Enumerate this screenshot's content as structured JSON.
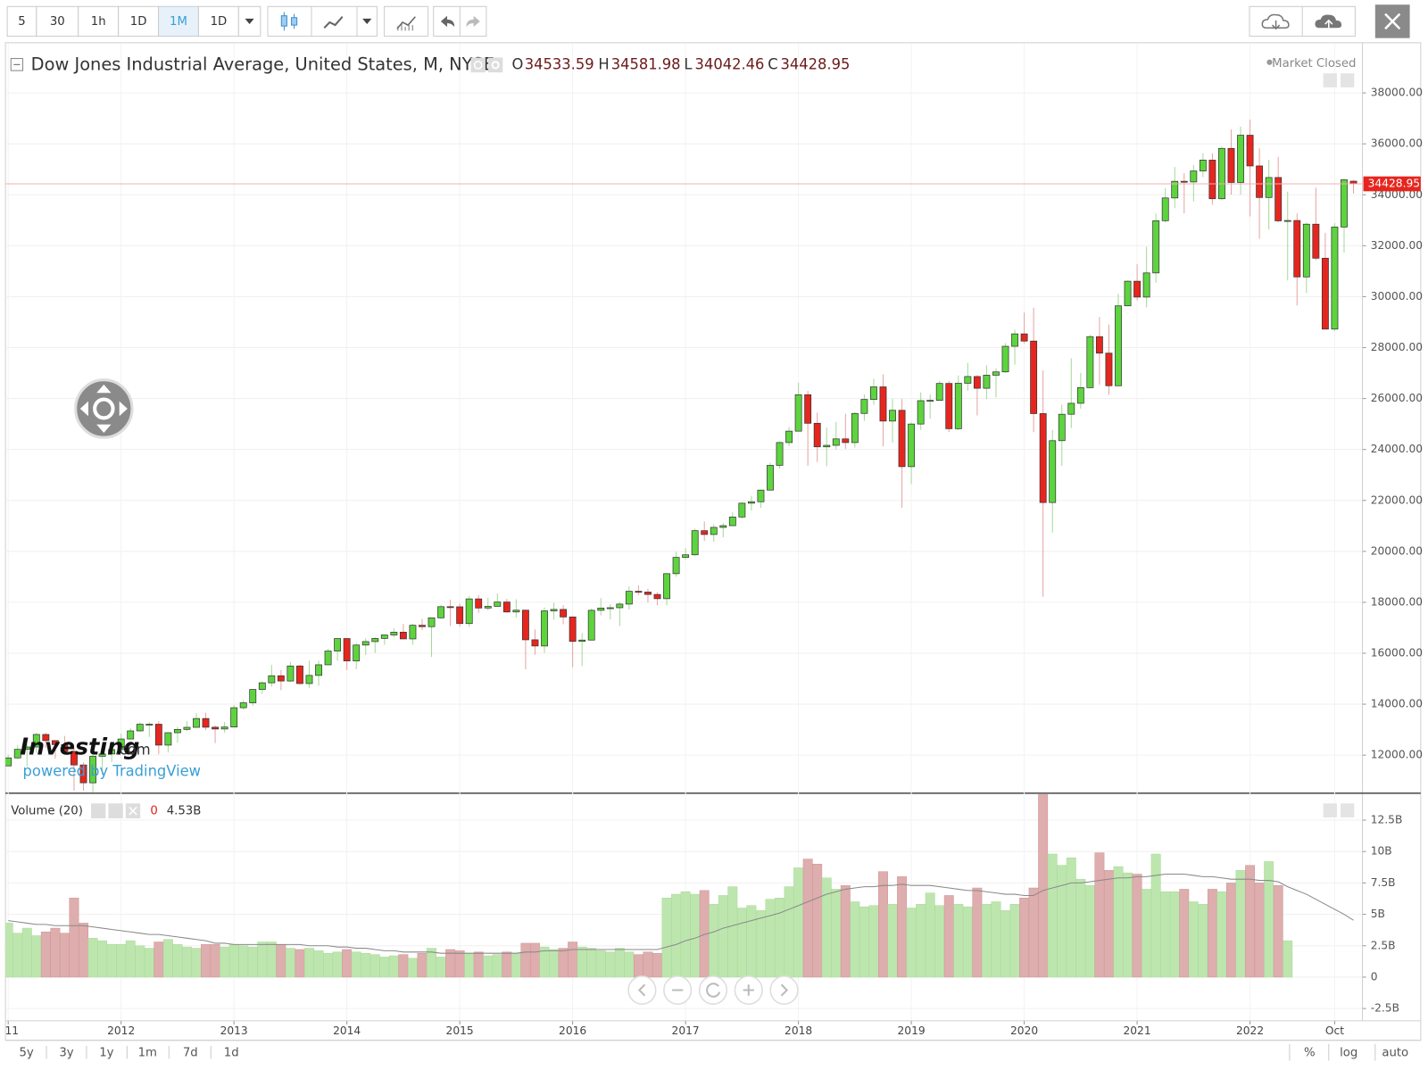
{
  "toolbar": {
    "intervals": [
      "5",
      "30",
      "1h",
      "1D",
      "1M",
      "1D"
    ],
    "active": 4
  },
  "ranges": [
    "5y",
    "3y",
    "1y",
    "1m",
    "7d",
    "1d"
  ],
  "scale_options": [
    "%",
    "log",
    "auto"
  ],
  "market_status": "Market Closed",
  "watermark": {
    "brand": "Investing",
    "suffix": ".com",
    "powered": "powered by TradingView"
  },
  "chart_data": [
    {
      "type": "candlestick",
      "title": "Dow Jones Industrial Average, United States, M, NYSE",
      "ohlc_labels": [
        "O",
        "H",
        "L",
        "C"
      ],
      "up_color": "#5dd43e",
      "down_color": "#e6261e",
      "grid": true,
      "categories": [
        "11",
        null,
        null,
        null,
        null,
        null,
        null,
        null,
        null,
        null,
        null,
        null,
        "2012",
        null,
        null,
        null,
        null,
        null,
        null,
        null,
        null,
        null,
        null,
        null,
        "2013",
        null,
        null,
        null,
        null,
        null,
        null,
        null,
        null,
        null,
        null,
        null,
        "2014",
        null,
        null,
        null,
        null,
        null,
        null,
        null,
        null,
        null,
        null,
        null,
        "2015",
        null,
        null,
        null,
        null,
        null,
        null,
        null,
        null,
        null,
        null,
        null,
        "2016",
        null,
        null,
        null,
        null,
        null,
        null,
        null,
        null,
        null,
        null,
        null,
        "2017",
        null,
        null,
        null,
        null,
        null,
        null,
        null,
        null,
        null,
        null,
        null,
        "2018",
        null,
        null,
        null,
        null,
        null,
        null,
        null,
        null,
        null,
        null,
        null,
        "2019",
        null,
        null,
        null,
        null,
        null,
        null,
        null,
        null,
        null,
        null,
        null,
        "2020",
        null,
        null,
        null,
        null,
        null,
        null,
        null,
        null,
        null,
        null,
        null,
        "2021",
        null,
        null,
        null,
        null,
        null,
        null,
        null,
        null,
        null,
        null,
        null,
        "2022",
        null,
        null,
        null,
        null,
        null,
        null,
        null,
        null,
        "Oct",
        null,
        null
      ],
      "open": [
        11578,
        11892,
        12226,
        12320,
        12811,
        12570,
        12414,
        12143,
        11614,
        10913,
        11955,
        12046,
        12218,
        12633,
        12952,
        13212,
        13214,
        12393,
        12880,
        13009,
        13091,
        13437,
        13096,
        13026,
        13104,
        13861,
        14054,
        14579,
        14840,
        15116,
        14910,
        15500,
        14810,
        15130,
        15546,
        16086,
        16577,
        15699,
        16322,
        16458,
        16581,
        16717,
        16827,
        16563,
        17098,
        17043,
        17391,
        17828,
        17823,
        17165,
        18133,
        17776,
        17841,
        18011,
        17620,
        17690,
        16528,
        16285,
        17664,
        17720,
        17425,
        16466,
        16517,
        17685,
        17774,
        17787,
        17930,
        18432,
        18401,
        18308,
        18142,
        19124,
        19763,
        19864,
        20812,
        20663,
        20941,
        21009,
        21350,
        21891,
        21948,
        22405,
        23377,
        24272,
        24719,
        26149,
        25029,
        24103,
        24163,
        24416,
        24271,
        25415,
        25965,
        26458,
        25116,
        25538,
        23327,
        24999,
        25916,
        25929,
        26593,
        24815,
        26600,
        26864,
        26403,
        26917,
        27046,
        28051,
        28538,
        28256,
        25409,
        21917,
        24346,
        25383,
        25813,
        26428,
        28430,
        27782,
        26502,
        29639,
        30606,
        29983,
        30932,
        32982,
        33875,
        34529,
        34503,
        34935,
        35361,
        33844,
        35820,
        34484,
        36338,
        35132,
        33893,
        34678,
        32977,
        32990,
        30775,
        32845,
        31510,
        28726,
        32733,
        34533.59
      ],
      "high": [
        12020,
        12392,
        12419,
        12876,
        12877,
        12580,
        12754,
        12284,
        11717,
        12284,
        12188,
        12330,
        12842,
        13056,
        13290,
        13297,
        13339,
        12899,
        13103,
        13331,
        13653,
        13662,
        13161,
        13302,
        13970,
        14150,
        14585,
        14888,
        15542,
        15340,
        15658,
        15542,
        15710,
        15710,
        16174,
        16588,
        16588,
        16398,
        16589,
        16632,
        16736,
        16978,
        17151,
        17153,
        17350,
        17395,
        17895,
        18103,
        17951,
        18244,
        18288,
        18175,
        18351,
        18137,
        18120,
        17708,
        16933,
        17799,
        17978,
        17888,
        17425,
        16795,
        17756,
        18168,
        17923,
        18017,
        18622,
        18668,
        18534,
        18400,
        19152,
        19987,
        20125,
        20892,
        21170,
        21070,
        21112,
        21535,
        21930,
        22180,
        22420,
        23485,
        24327,
        24876,
        26617,
        26307,
        25450,
        24858,
        25087,
        25402,
        25468,
        26168,
        26770,
        26952,
        25980,
        25980,
        25066,
        26242,
        26156,
        26696,
        26689,
        26907,
        27399,
        26918,
        27306,
        27180,
        28175,
        28702,
        29374,
        29569,
        27102,
        24765,
        25759,
        27581,
        27007,
        28502,
        29199,
        28903,
        30117,
        30637,
        31272,
        31962,
        33259,
        34256,
        35091,
        34849,
        35171,
        35631,
        35631,
        35892,
        36566,
        36679,
        36952,
        35824,
        35372,
        35492,
        34118,
        33272,
        32910,
        34281,
        32504,
        32884,
        34595,
        34581.98
      ],
      "low": [
        11577,
        11849,
        11555,
        12093,
        12282,
        11862,
        12094,
        10604,
        10597,
        10404,
        11231,
        11735,
        12218,
        12621,
        12920,
        12710,
        12035,
        12101,
        12492,
        12939,
        13089,
        12980,
        12471,
        12884,
        13104,
        13784,
        13937,
        14398,
        14688,
        14551,
        14880,
        14760,
        14640,
        14719,
        15545,
        15703,
        15340,
        15373,
        15937,
        16015,
        16334,
        16621,
        16563,
        16333,
        16911,
        15855,
        17340,
        17067,
        17037,
        17037,
        17585,
        17680,
        17852,
        17590,
        17399,
        15370,
        15942,
        16013,
        17317,
        17139,
        15450,
        15503,
        16545,
        17484,
        17331,
        17063,
        17714,
        18287,
        17992,
        17888,
        17884,
        19007,
        19678,
        19831,
        20412,
        20379,
        20554,
        20994,
        21279,
        21600,
        21709,
        22417,
        23242,
        24135,
        24719,
        23361,
        23509,
        23344,
        23997,
        24022,
        24077,
        25124,
        25759,
        24123,
        24269,
        21713,
        22639,
        24772,
        25208,
        25915,
        24680,
        24764,
        26305,
        25339,
        25978,
        26045,
        27010,
        27325,
        28170,
        24681,
        18214,
        20735,
        23361,
        24843,
        25604,
        26410,
        26538,
        26144,
        26501,
        29652,
        29857,
        29580,
        30547,
        32912,
        33474,
        33272,
        33742,
        34690,
        33613,
        33785,
        34005,
        34006,
        33150,
        32272,
        32632,
        32913,
        30635,
        29653,
        30144,
        31430,
        28715,
        28660,
        31727,
        34042.46
      ],
      "close": [
        11892,
        12226,
        12320,
        12811,
        12570,
        12414,
        12143,
        11614,
        10913,
        11955,
        12046,
        12218,
        12633,
        12952,
        13212,
        13214,
        12393,
        12880,
        13009,
        13091,
        13437,
        13096,
        13026,
        13104,
        13861,
        14054,
        14579,
        14840,
        15116,
        14910,
        15500,
        14810,
        15130,
        15546,
        16086,
        16577,
        15699,
        16322,
        16458,
        16581,
        16717,
        16827,
        16563,
        17098,
        17043,
        17391,
        17828,
        17823,
        17165,
        18133,
        17776,
        17841,
        18011,
        17620,
        17690,
        16528,
        16285,
        17664,
        17720,
        17425,
        16466,
        16517,
        17685,
        17774,
        17787,
        17930,
        18432,
        18401,
        18308,
        18142,
        19124,
        19763,
        19864,
        20812,
        20663,
        20941,
        21009,
        21350,
        21891,
        21948,
        22405,
        23377,
        24272,
        24719,
        26149,
        25029,
        24103,
        24163,
        24416,
        24271,
        25415,
        25965,
        26458,
        25116,
        25538,
        23327,
        24999,
        25916,
        25929,
        26593,
        24815,
        26600,
        26864,
        26403,
        26917,
        27046,
        28051,
        28538,
        28256,
        25409,
        21917,
        24346,
        25383,
        25813,
        26428,
        28430,
        27782,
        26502,
        29639,
        30606,
        29983,
        30932,
        32982,
        33875,
        34529,
        34503,
        34935,
        35361,
        33844,
        35820,
        34484,
        36338,
        35132,
        33893,
        34678,
        32977,
        32990,
        30775,
        32845,
        31510,
        28726,
        32733,
        34590,
        34428.95
      ],
      "ylim": [
        10541,
        39933
      ],
      "yticks": [
        {
          "value": 12000,
          "label": "12000.00"
        },
        {
          "value": 14000,
          "label": "14000.00"
        },
        {
          "value": 16000,
          "label": "16000.00"
        },
        {
          "value": 18000,
          "label": "18000.00"
        },
        {
          "value": 20000,
          "label": "20000.00"
        },
        {
          "value": 22000,
          "label": "22000.00"
        },
        {
          "value": 24000,
          "label": "24000.00"
        },
        {
          "value": 26000,
          "label": "26000.00"
        },
        {
          "value": 28000,
          "label": "28000.00"
        },
        {
          "value": 30000,
          "label": "30000.00"
        },
        {
          "value": 32000,
          "label": "32000.00"
        },
        {
          "value": 34000,
          "label": "34000.00"
        },
        {
          "value": 36000,
          "label": "36000.00"
        },
        {
          "value": 38000,
          "label": "38000.00"
        }
      ]
    },
    {
      "type": "bar",
      "title": "Volume (20)",
      "up_color": "#bde6ae",
      "down_color": "#deadad",
      "ma_color": "#8a8a8a",
      "ma_label": "4.53B",
      "values": [
        4.3,
        3.5,
        3.9,
        3.3,
        3.6,
        3.9,
        3.5,
        6.3,
        4.3,
        3.1,
        2.9,
        2.6,
        2.6,
        2.9,
        2.5,
        2.3,
        2.8,
        3.0,
        2.6,
        2.4,
        2.3,
        2.6,
        2.6,
        2.4,
        2.6,
        2.5,
        2.4,
        2.8,
        2.8,
        2.6,
        2.3,
        2.2,
        2.3,
        2.1,
        1.9,
        2.0,
        2.2,
        2.0,
        1.9,
        1.8,
        1.6,
        1.7,
        1.8,
        1.5,
        1.9,
        2.3,
        1.6,
        2.2,
        2.1,
        1.9,
        2.0,
        1.7,
        1.8,
        2.0,
        1.9,
        2.7,
        2.7,
        2.4,
        2.2,
        2.3,
        2.8,
        2.4,
        2.3,
        2.1,
        2.0,
        2.3,
        2.0,
        1.8,
        2.0,
        1.9,
        6.3,
        6.6,
        6.8,
        6.6,
        6.9,
        5.8,
        6.5,
        7.2,
        5.5,
        5.7,
        5.3,
        6.2,
        6.3,
        7.2,
        8.7,
        9.4,
        9.0,
        7.9,
        7.0,
        7.3,
        6.0,
        5.6,
        5.7,
        8.4,
        5.8,
        8.0,
        5.5,
        5.8,
        6.7,
        5.7,
        6.5,
        5.8,
        5.6,
        7.1,
        5.8,
        6.0,
        5.3,
        5.8,
        6.3,
        7.1,
        15.2,
        9.8,
        8.9,
        9.5,
        7.8,
        7.3,
        9.9,
        8.5,
        8.8,
        8.3,
        8.2,
        7.0,
        9.8,
        6.8,
        6.8,
        7.0,
        6.0,
        5.8,
        7.0,
        6.8,
        7.5,
        8.5,
        8.9,
        7.5,
        9.2,
        7.3,
        2.9,
        0,
        0,
        0,
        0,
        0,
        0,
        0
      ],
      "ma": [
        4.5,
        4.4,
        4.3,
        4.2,
        4.2,
        4.1,
        4.1,
        4.1,
        4.1,
        4.0,
        3.9,
        3.8,
        3.7,
        3.6,
        3.5,
        3.4,
        3.4,
        3.3,
        3.2,
        3.1,
        3.0,
        2.9,
        2.7,
        2.7,
        2.6,
        2.6,
        2.6,
        2.6,
        2.6,
        2.6,
        2.6,
        2.6,
        2.5,
        2.5,
        2.5,
        2.4,
        2.4,
        2.3,
        2.3,
        2.2,
        2.1,
        2.1,
        2.0,
        2.0,
        2.0,
        2.0,
        1.9,
        1.9,
        1.9,
        1.9,
        1.9,
        1.9,
        1.9,
        1.9,
        1.9,
        2.0,
        2.0,
        2.1,
        2.1,
        2.1,
        2.2,
        2.2,
        2.2,
        2.2,
        2.2,
        2.2,
        2.2,
        2.2,
        2.2,
        2.2,
        2.4,
        2.6,
        2.9,
        3.1,
        3.4,
        3.6,
        3.9,
        4.1,
        4.3,
        4.5,
        4.7,
        4.9,
        5.1,
        5.4,
        5.7,
        6.0,
        6.3,
        6.6,
        6.8,
        7.0,
        7.1,
        7.2,
        7.2,
        7.3,
        7.3,
        7.4,
        7.3,
        7.3,
        7.3,
        7.2,
        7.1,
        7.0,
        6.9,
        6.9,
        6.8,
        6.7,
        6.6,
        6.6,
        6.5,
        6.5,
        6.9,
        7.1,
        7.3,
        7.5,
        7.5,
        7.6,
        7.7,
        7.8,
        7.9,
        7.9,
        8.0,
        8.0,
        8.1,
        8.2,
        8.2,
        8.2,
        8.1,
        8.0,
        8.0,
        7.9,
        7.8,
        7.8,
        7.8,
        7.7,
        7.7,
        7.6,
        7.2,
        6.9,
        6.6,
        6.2,
        5.8,
        5.4,
        5.0,
        4.53
      ],
      "ylim": [
        -3.4,
        14.57
      ],
      "yticks": [
        {
          "value": -2.5,
          "label": "-2.5B"
        },
        0,
        {
          "value": 2.5,
          "label": "2.5B"
        },
        {
          "value": 5,
          "label": "5B"
        },
        {
          "value": 7.5,
          "label": "7.5B"
        },
        {
          "value": 10,
          "label": "10B"
        },
        {
          "value": 12.5,
          "label": "12.5B"
        }
      ]
    }
  ]
}
